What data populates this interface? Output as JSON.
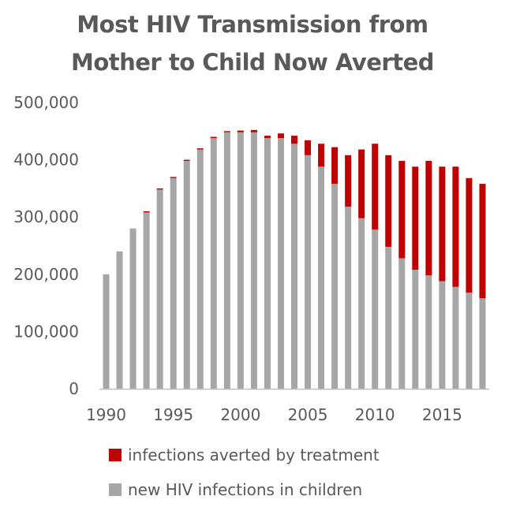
{
  "title_line1": "Most HIV Transmission from",
  "title_line2": "Mother to Child Now Averted",
  "colors": {
    "averted": "#c00000",
    "new": "#a6a6a6",
    "text": "#595959",
    "axis": "#bfbfbf"
  },
  "chart_data": {
    "type": "bar",
    "stacked": true,
    "title": "Most HIV Transmission from Mother to Child Now Averted",
    "x": [
      1990,
      1991,
      1992,
      1993,
      1994,
      1995,
      1996,
      1997,
      1998,
      1999,
      2000,
      2001,
      2002,
      2003,
      2004,
      2005,
      2006,
      2007,
      2008,
      2009,
      2010,
      2011,
      2012,
      2013,
      2014,
      2015,
      2016,
      2017,
      2018
    ],
    "x_tick_labels": [
      "1990",
      "1995",
      "2000",
      "2005",
      "2010",
      "2015"
    ],
    "y_tick_labels": [
      "0",
      "100,000",
      "200,000",
      "300,000",
      "400,000",
      "500,000"
    ],
    "ylim": [
      0,
      500000
    ],
    "grid": false,
    "legend_position": "bottom",
    "series": [
      {
        "name": "new HIV infections in children",
        "values": [
          200000,
          240000,
          280000,
          308000,
          348000,
          368000,
          398000,
          418000,
          438000,
          448000,
          448000,
          448000,
          438000,
          438000,
          428000,
          408000,
          388000,
          358000,
          318000,
          298000,
          278000,
          248000,
          228000,
          208000,
          198000,
          188000,
          178000,
          168000,
          158000
        ]
      },
      {
        "name": "infections averted by treatment",
        "values": [
          0,
          0,
          0,
          2000,
          2000,
          2000,
          2000,
          2000,
          2000,
          2000,
          3000,
          4000,
          4000,
          8000,
          14000,
          26000,
          40000,
          64000,
          90000,
          120000,
          150000,
          160000,
          170000,
          180000,
          200000,
          200000,
          210000,
          200000,
          200000
        ]
      }
    ]
  },
  "legend": [
    {
      "label": "infections averted by treatment",
      "color": "#c00000"
    },
    {
      "label": "new HIV infections in children",
      "color": "#a6a6a6"
    }
  ]
}
